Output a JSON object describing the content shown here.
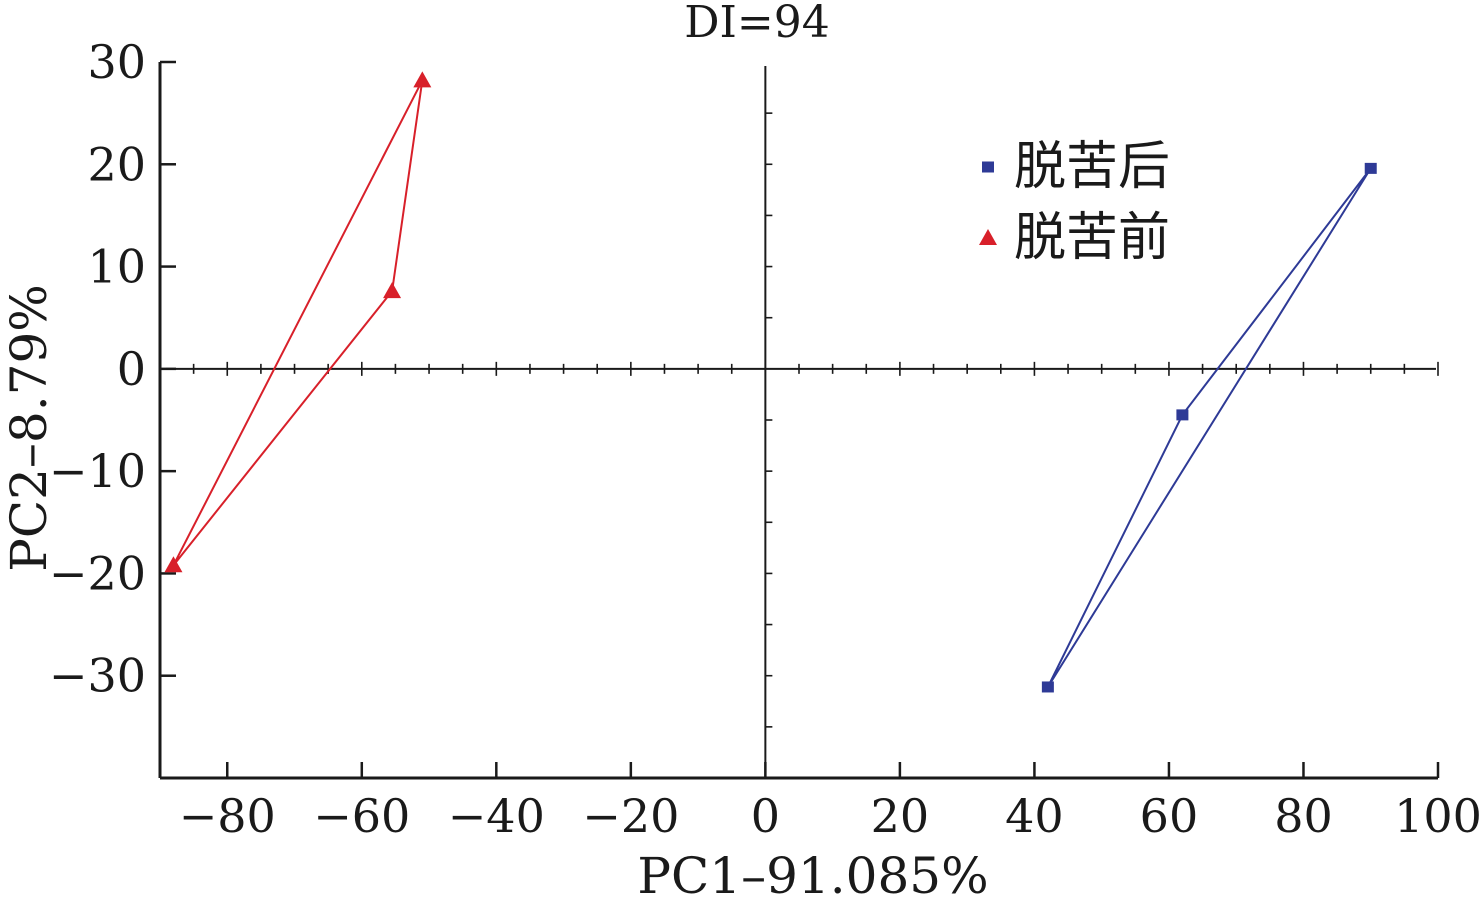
{
  "chart_data": {
    "type": "scatter",
    "title": "DI=94",
    "xlabel": "PC1–91.085%",
    "ylabel": "PC2–8.79%",
    "xlim": [
      -90,
      100
    ],
    "ylim": [
      -40,
      30
    ],
    "xticks": [
      -80,
      -60,
      -40,
      -20,
      0,
      20,
      40,
      60,
      80,
      100
    ],
    "yticks": [
      -30,
      -20,
      -10,
      0,
      10,
      20,
      30
    ],
    "legend_position": "top-right",
    "series": [
      {
        "name": "脱苦后",
        "marker": "square",
        "color": "#2e3a96",
        "points": [
          {
            "x": 90,
            "y": 19.6
          },
          {
            "x": 62,
            "y": -4.5
          },
          {
            "x": 42,
            "y": -31.1
          }
        ]
      },
      {
        "name": "脱苦前",
        "marker": "triangle",
        "color": "#d8202a",
        "points": [
          {
            "x": -51,
            "y": 28.2
          },
          {
            "x": -55.5,
            "y": 7.6
          },
          {
            "x": -88,
            "y": -19.2
          }
        ]
      }
    ]
  }
}
